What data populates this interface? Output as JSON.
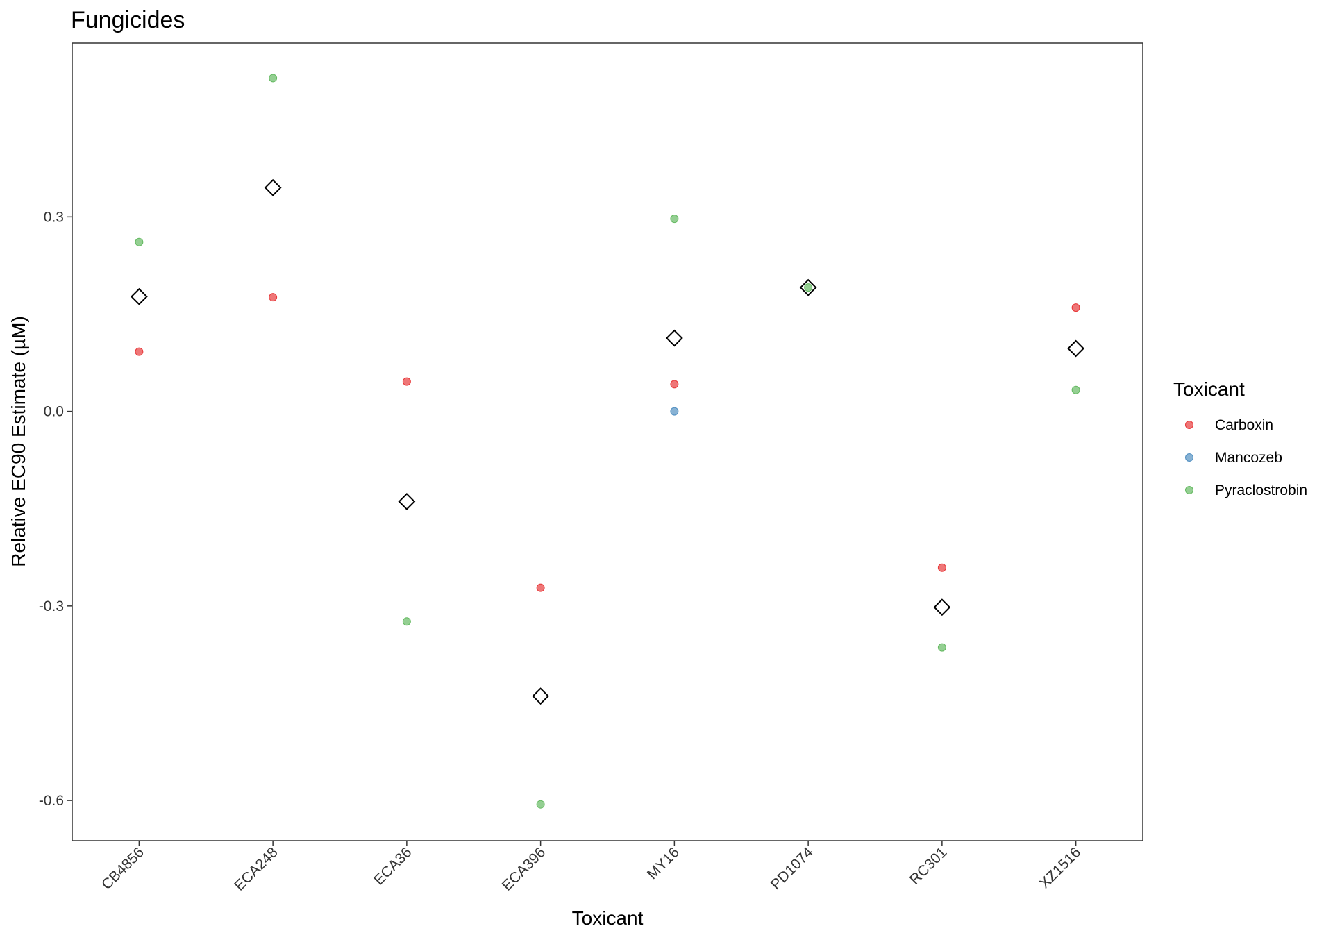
{
  "chart_data": {
    "type": "scatter",
    "title": "Fungicides",
    "xlabel": "Toxicant",
    "ylabel": "Relative EC90 Estimate (µM)",
    "categories": [
      "CB4856",
      "ECA248",
      "ECA36",
      "ECA396",
      "MY16",
      "PD1074",
      "RC301",
      "XZ1516"
    ],
    "ylim": [
      -0.662,
      0.568
    ],
    "yticks": [
      "-0.6",
      "-0.3",
      "0.0",
      "0.3"
    ],
    "grid": false,
    "legend": {
      "title": "Toxicant",
      "placement": "right"
    },
    "series": [
      {
        "name": "Carboxin",
        "color": "#E41A1C",
        "values": [
          0.092,
          0.176,
          0.046,
          -0.272,
          0.042,
          null,
          -0.241,
          0.16
        ]
      },
      {
        "name": "Mancozeb",
        "color": "#377EB8",
        "values": [
          null,
          null,
          null,
          null,
          0.0,
          null,
          null,
          null
        ]
      },
      {
        "name": "Pyraclostrobin",
        "color": "#4DAF4A",
        "values": [
          0.261,
          0.514,
          -0.324,
          -0.606,
          0.297,
          0.191,
          -0.364,
          0.033
        ]
      }
    ],
    "mean": {
      "marker": "diamond",
      "values": [
        0.177,
        0.345,
        -0.139,
        -0.439,
        0.113,
        0.191,
        -0.302,
        0.097
      ]
    }
  }
}
